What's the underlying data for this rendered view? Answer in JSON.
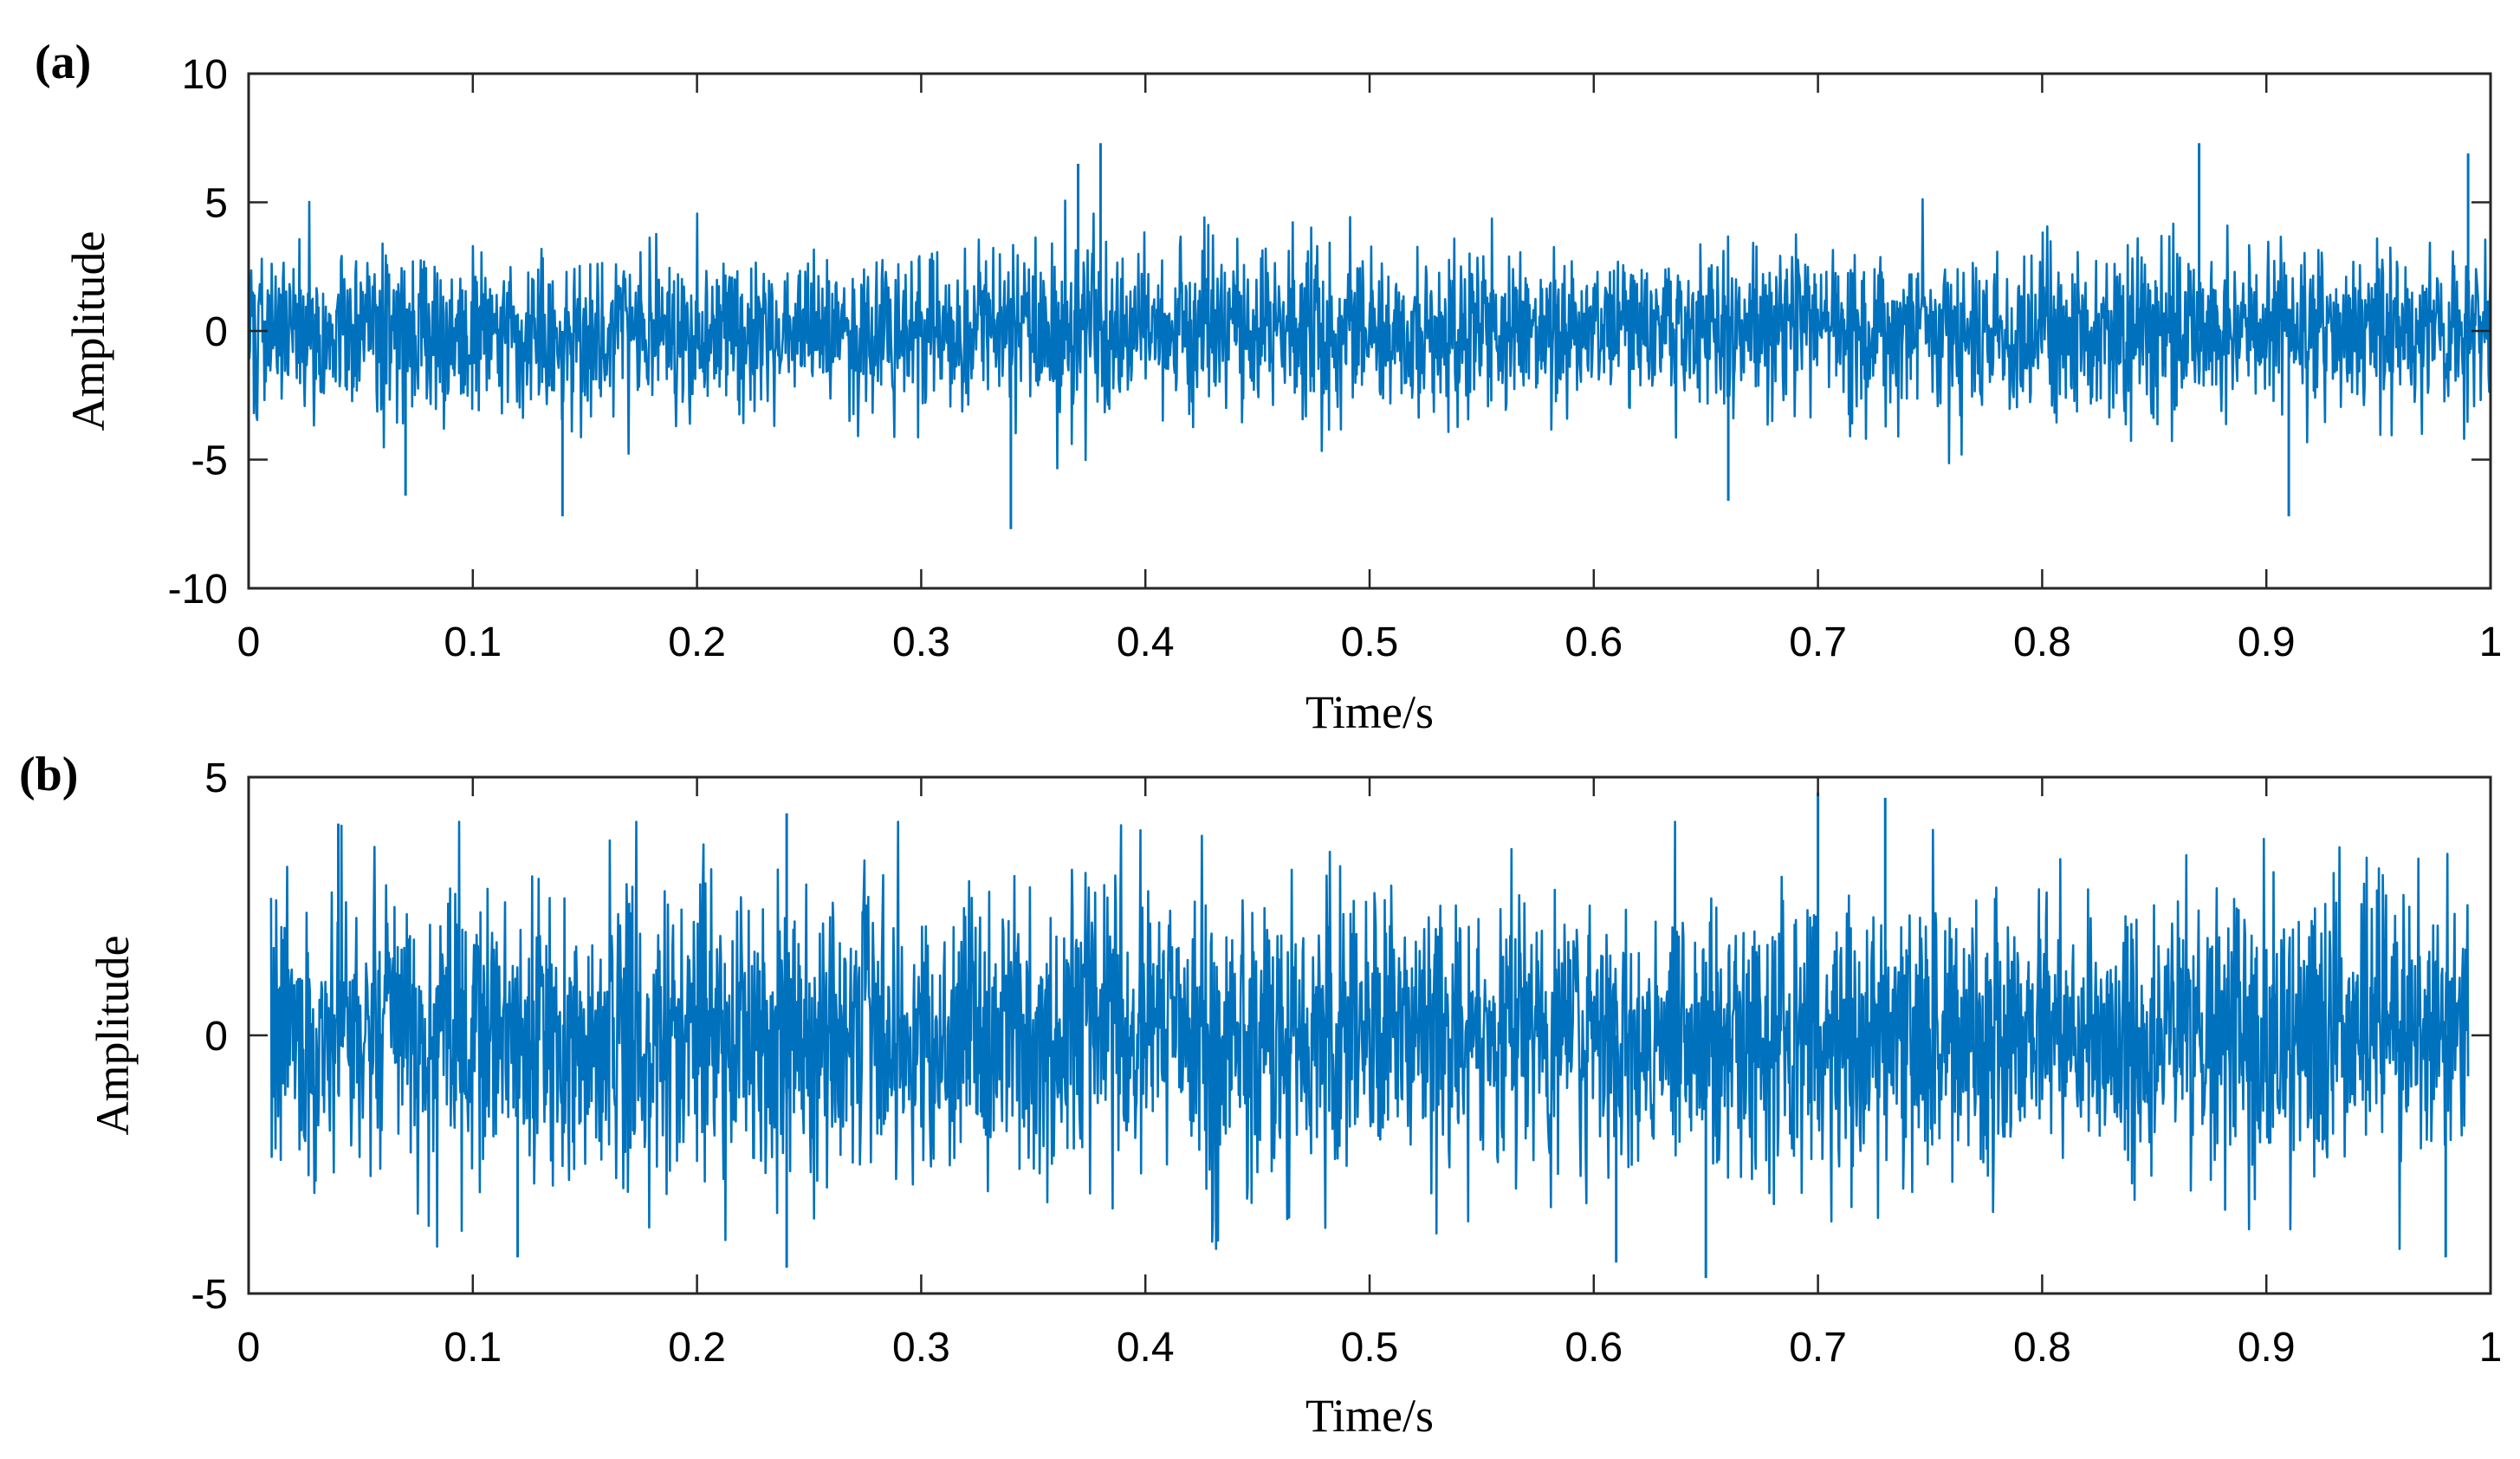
{
  "chart_data": [
    {
      "type": "line",
      "panel_label": "(a)",
      "xlabel": "Time/s",
      "ylabel": "Amplitude",
      "xlim": [
        0,
        1
      ],
      "ylim": [
        -10,
        10
      ],
      "x_ticks": [
        0,
        0.1,
        0.2,
        0.3,
        0.4,
        0.5,
        0.6,
        0.7,
        0.8,
        0.9,
        1
      ],
      "x_tick_labels": [
        "0",
        "0.1",
        "0.2",
        "0.3",
        "0.4",
        "0.5",
        "0.6",
        "0.7",
        "0.8",
        "0.9",
        "1"
      ],
      "y_ticks": [
        10,
        5,
        0,
        -5,
        -10
      ],
      "y_tick_labels": [
        "10",
        "5",
        "0",
        "-5",
        "-10"
      ],
      "grid": false,
      "series_color": "#0072BD",
      "signal": {
        "t_start": 0,
        "t_end": 1,
        "approx_range": [
          -7.7,
          7.3
        ]
      },
      "peaks": [
        {
          "x": 0.38,
          "y": 7.3
        },
        {
          "x": 0.87,
          "y": 7.3
        },
        {
          "x": 0.37,
          "y": 6.5
        },
        {
          "x": 0.99,
          "y": 6.9
        },
        {
          "x": 0.34,
          "y": -7.7
        },
        {
          "x": 0.14,
          "y": -7.2
        },
        {
          "x": 0.91,
          "y": -7.2
        },
        {
          "x": 0.07,
          "y": -6.4
        },
        {
          "x": 0.66,
          "y": -6.6
        }
      ]
    },
    {
      "type": "line",
      "panel_label": "(b)",
      "xlabel": "Time/s",
      "ylabel": "Amplitude",
      "xlim": [
        0,
        1
      ],
      "ylim": [
        -5,
        5
      ],
      "x_ticks": [
        0,
        0.1,
        0.2,
        0.3,
        0.4,
        0.5,
        0.6,
        0.7,
        0.8,
        0.9,
        1
      ],
      "x_tick_labels": [
        "0",
        "0.1",
        "0.2",
        "0.3",
        "0.4",
        "0.5",
        "0.6",
        "0.7",
        "0.8",
        "0.9",
        "1"
      ],
      "y_ticks": [
        5,
        0,
        -5
      ],
      "y_tick_labels": [
        "5",
        "0",
        "-5"
      ],
      "grid": false,
      "series_color": "#0072BD",
      "signal": {
        "t_start": 0.01,
        "t_end": 0.99,
        "approx_range": [
          -4.7,
          4.7
        ]
      },
      "peaks": [
        {
          "x": 0.7,
          "y": 4.7
        },
        {
          "x": 0.73,
          "y": 4.6
        },
        {
          "x": 0.24,
          "y": 4.3
        },
        {
          "x": 0.04,
          "y": 4.1
        },
        {
          "x": 0.65,
          "y": -4.7
        },
        {
          "x": 0.24,
          "y": -4.5
        },
        {
          "x": 0.61,
          "y": -4.4
        },
        {
          "x": 0.98,
          "y": -4.3
        },
        {
          "x": 0.12,
          "y": -4.3
        }
      ]
    }
  ]
}
